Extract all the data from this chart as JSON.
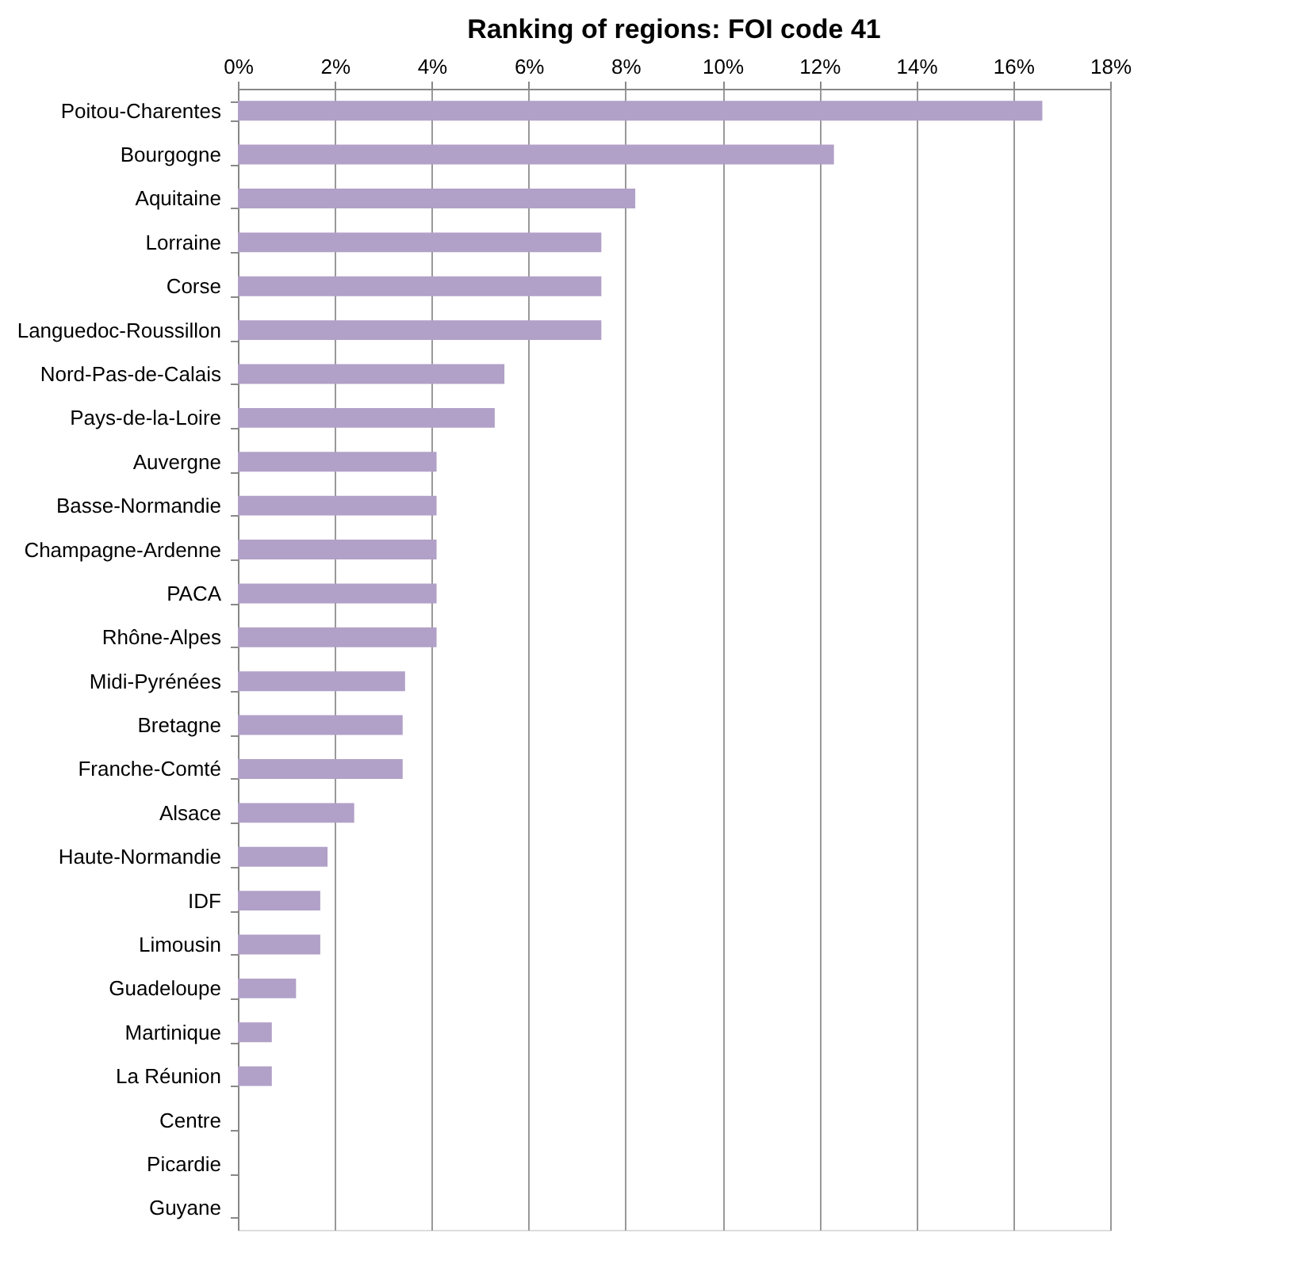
{
  "chart_data": {
    "type": "bar",
    "orientation": "horizontal",
    "title": "Ranking of regions: FOI code 41",
    "categories": [
      "Poitou-Charentes",
      "Bourgogne",
      "Aquitaine",
      "Lorraine",
      "Corse",
      "Languedoc-Roussillon",
      "Nord-Pas-de-Calais",
      "Pays-de-la-Loire",
      "Auvergne",
      "Basse-Normandie",
      "Champagne-Ardenne",
      "PACA",
      "Rhône-Alpes",
      "Midi-Pyrénées",
      "Bretagne",
      "Franche-Comté",
      "Alsace",
      "Haute-Normandie",
      "IDF",
      "Limousin",
      "Guadeloupe",
      "Martinique",
      "La Réunion",
      "Centre",
      "Picardie",
      "Guyane"
    ],
    "values": [
      16.6,
      12.3,
      8.2,
      7.5,
      7.5,
      7.5,
      5.5,
      5.3,
      4.1,
      4.1,
      4.1,
      4.1,
      4.1,
      3.45,
      3.4,
      3.4,
      2.4,
      1.85,
      1.7,
      1.7,
      1.2,
      0.7,
      0.7,
      0,
      0,
      0
    ],
    "color": "#b1a0c7",
    "xlim": [
      0,
      18
    ],
    "xticks": [
      {
        "value": 0,
        "label": "0%"
      },
      {
        "value": 2,
        "label": "2%"
      },
      {
        "value": 4,
        "label": "4%"
      },
      {
        "value": 6,
        "label": "6%"
      },
      {
        "value": 8,
        "label": "8%"
      },
      {
        "value": 10,
        "label": "10%"
      },
      {
        "value": 12,
        "label": "12%"
      },
      {
        "value": 14,
        "label": "14%"
      },
      {
        "value": 16,
        "label": "16%"
      },
      {
        "value": 18,
        "label": "18%"
      }
    ],
    "grid": "x"
  }
}
